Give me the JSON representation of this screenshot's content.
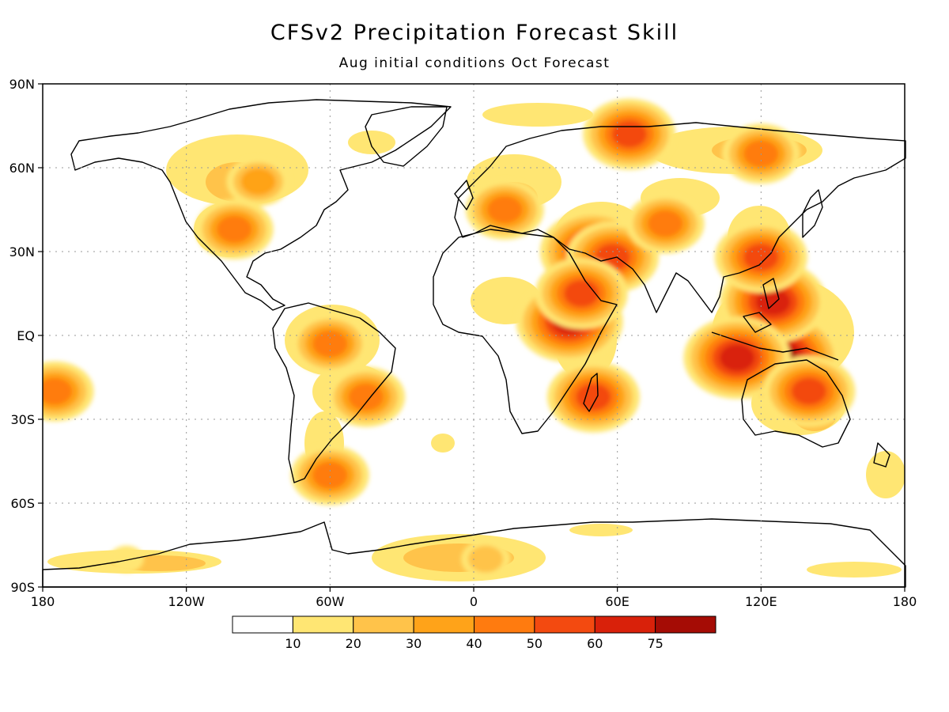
{
  "title": "CFSv2 Precipitation Forecast Skill",
  "subtitle": "Aug initial conditions   Oct Forecast",
  "axes": {
    "x_ticks": [
      "180",
      "120W",
      "60W",
      "0",
      "60E",
      "120E",
      "180"
    ],
    "y_ticks": [
      "90N",
      "60N",
      "30N",
      "EQ",
      "30S",
      "60S",
      "90S"
    ],
    "lon_range": [
      -180,
      180
    ],
    "lat_range": [
      -90,
      90
    ],
    "grid": "dotted"
  },
  "colorbar": {
    "labels": [
      "10",
      "20",
      "30",
      "40",
      "50",
      "60",
      "75"
    ],
    "colors": [
      "#ffffff",
      "#ffe673",
      "#ffc34a",
      "#ffa319",
      "#ff7b0f",
      "#f34a10",
      "#d9210a",
      "#a50c05"
    ]
  },
  "chart_data": {
    "type": "heatmap",
    "title": "CFSv2 Precipitation Forecast Skill",
    "subtitle": "Aug initial conditions   Oct Forecast",
    "x_range": [
      -180,
      180
    ],
    "y_range": [
      -90,
      90
    ],
    "levels": [
      10,
      20,
      30,
      40,
      50,
      60,
      75
    ],
    "skill_regions": [
      {
        "lon": 128,
        "lat": -8,
        "skill_level": 75
      },
      {
        "lon": 125,
        "lat": 12,
        "skill_level": 60
      },
      {
        "lon": 110,
        "lat": -8,
        "skill_level": 60
      },
      {
        "lon": 140,
        "lat": -20,
        "skill_level": 50
      },
      {
        "lon": 120,
        "lat": 28,
        "skill_level": 50
      },
      {
        "lon": 50,
        "lat": 30,
        "skill_level": 60
      },
      {
        "lon": 58,
        "lat": 28,
        "skill_level": 50
      },
      {
        "lon": 40,
        "lat": 5,
        "skill_level": 60
      },
      {
        "lon": 45,
        "lat": 15,
        "skill_level": 50
      },
      {
        "lon": 50,
        "lat": -22,
        "skill_level": 50
      },
      {
        "lon": 65,
        "lat": 72,
        "skill_level": 50
      },
      {
        "lon": 120,
        "lat": 65,
        "skill_level": 40
      },
      {
        "lon": 80,
        "lat": 40,
        "skill_level": 40
      },
      {
        "lon": 13,
        "lat": 45,
        "skill_level": 40
      },
      {
        "lon": -60,
        "lat": -3,
        "skill_level": 40
      },
      {
        "lon": -45,
        "lat": -22,
        "skill_level": 40
      },
      {
        "lon": -100,
        "lat": 38,
        "skill_level": 40
      },
      {
        "lon": -90,
        "lat": 55,
        "skill_level": 30
      },
      {
        "lon": -60,
        "lat": -50,
        "skill_level": 40
      },
      {
        "lon": -175,
        "lat": -20,
        "skill_level": 40
      },
      {
        "lon": 5,
        "lat": -80,
        "skill_level": 20
      },
      {
        "lon": -145,
        "lat": -80,
        "skill_level": 10
      }
    ]
  }
}
